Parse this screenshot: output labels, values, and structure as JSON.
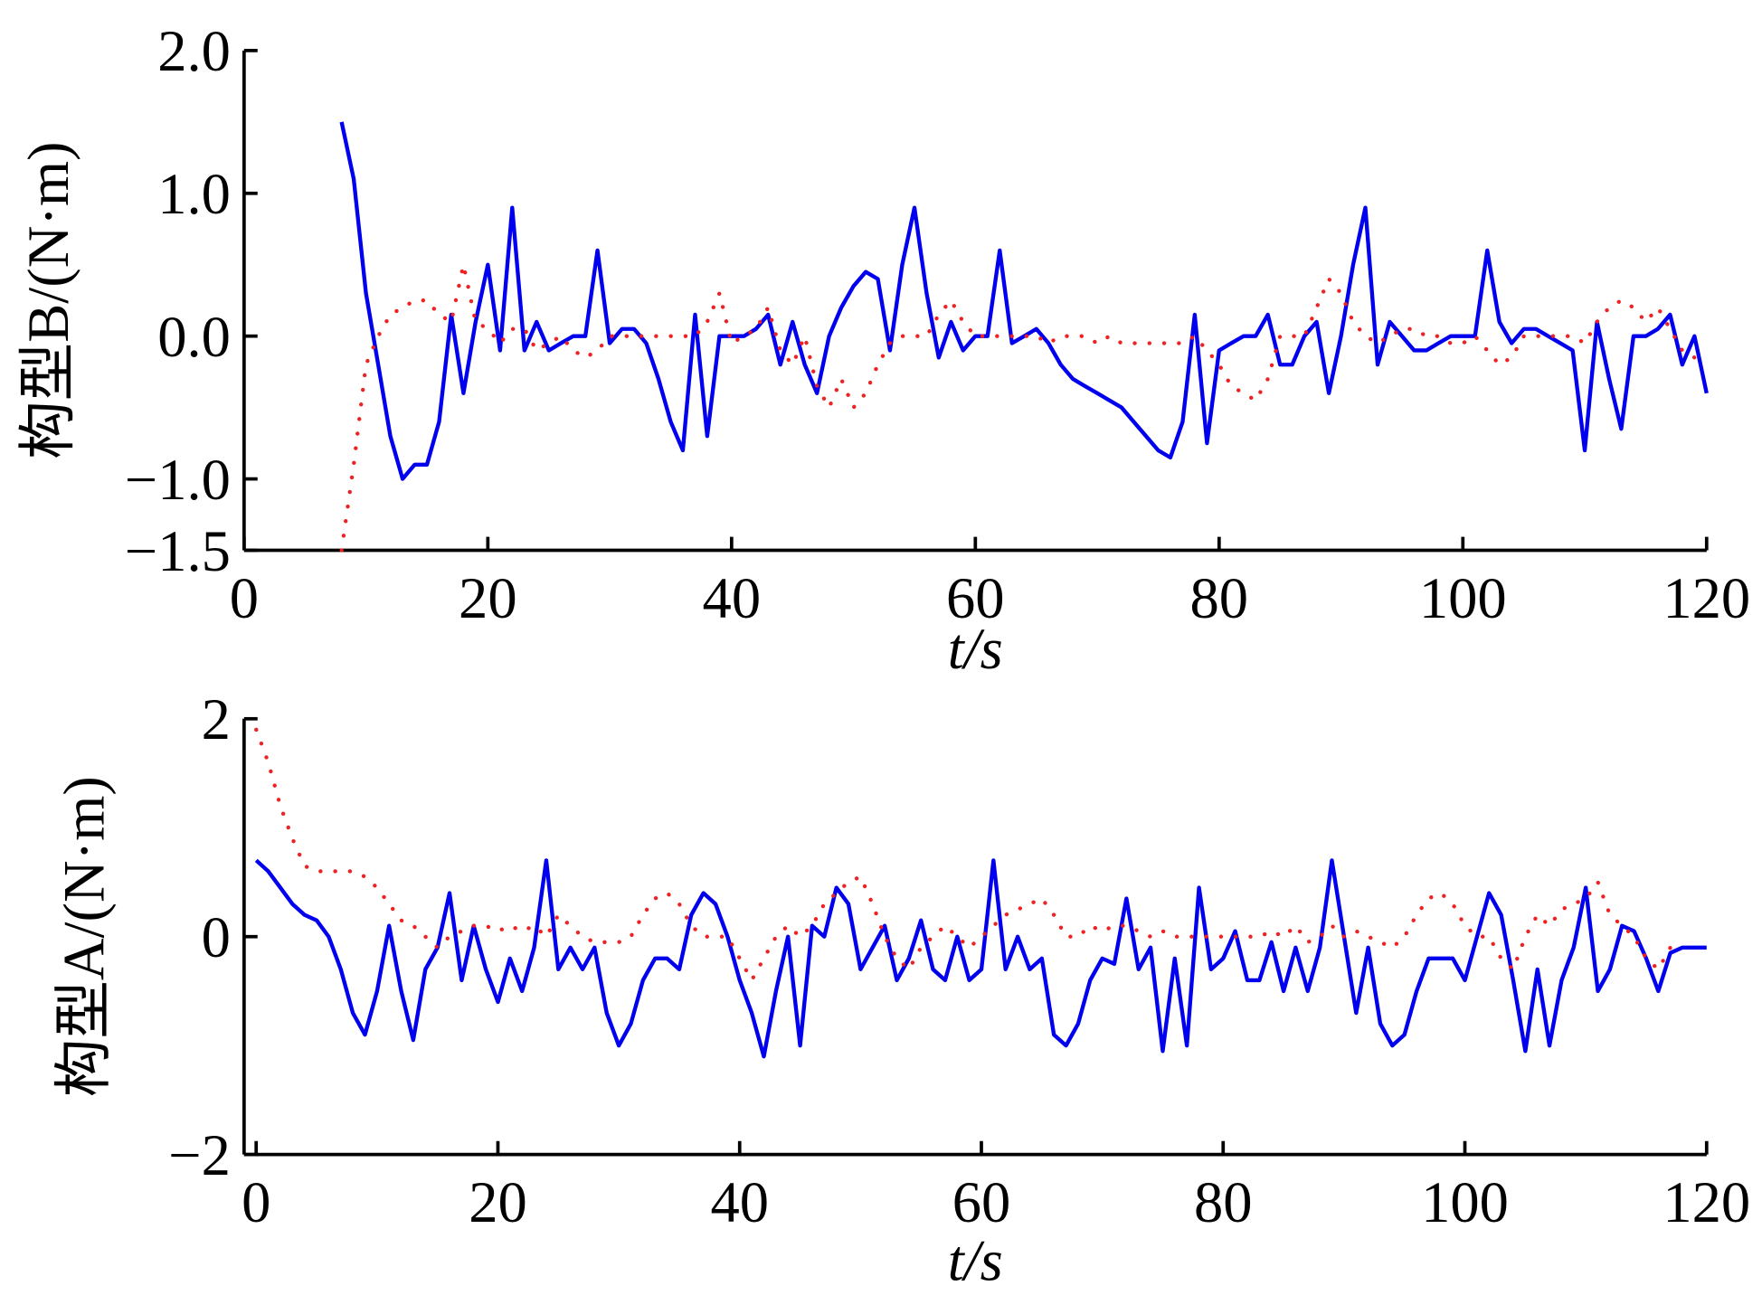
{
  "chart_data": [
    {
      "type": "line",
      "ylabel": "构型B/(N·m)",
      "xlabel": "t/s",
      "xlim": [
        0,
        120
      ],
      "xticks": [
        0,
        20,
        40,
        60,
        80,
        100,
        120
      ],
      "ylim": [
        -1.5,
        2.0
      ],
      "yticks": [
        {
          "value": 2,
          "label": "2.0"
        },
        {
          "value": 1,
          "label": "1.0"
        },
        {
          "value": 0,
          "label": "0.0"
        },
        {
          "value": -1,
          "label": "−1.0"
        },
        {
          "value": -1.5,
          "label": "−1.5"
        }
      ],
      "x": [
        8,
        9,
        10,
        11,
        12,
        13,
        14,
        15,
        16,
        17,
        18,
        19,
        20,
        21,
        22,
        23,
        24,
        25,
        26,
        27,
        28,
        29,
        30,
        31,
        32,
        33,
        34,
        35,
        36,
        37,
        38,
        39,
        40,
        41,
        42,
        43,
        44,
        45,
        46,
        47,
        48,
        49,
        50,
        51,
        52,
        53,
        54,
        55,
        56,
        57,
        58,
        59,
        60,
        61,
        62,
        63,
        64,
        65,
        66,
        67,
        68,
        69,
        70,
        71,
        72,
        73,
        74,
        75,
        76,
        77,
        78,
        79,
        80,
        81,
        82,
        83,
        84,
        85,
        86,
        87,
        88,
        89,
        90,
        91,
        92,
        93,
        94,
        95,
        96,
        97,
        98,
        99,
        100,
        101,
        102,
        103,
        104,
        105,
        106,
        107,
        108,
        109,
        110,
        111,
        112,
        113,
        114,
        115,
        116,
        117,
        118,
        119,
        120
      ],
      "series": [
        {
          "color": "#0000ee",
          "style": "solid",
          "values": [
            1.5,
            1.1,
            0.3,
            -0.2,
            -0.7,
            -1.0,
            -0.9,
            -0.9,
            -0.6,
            0.15,
            -0.4,
            0.1,
            0.5,
            -0.1,
            0.9,
            -0.1,
            0.1,
            -0.1,
            -0.05,
            0.0,
            0.0,
            0.6,
            -0.05,
            0.05,
            0.05,
            -0.05,
            -0.3,
            -0.6,
            -0.8,
            0.15,
            -0.7,
            0.0,
            0.0,
            0.0,
            0.05,
            0.15,
            -0.2,
            0.1,
            -0.2,
            -0.4,
            0.0,
            0.2,
            0.35,
            0.45,
            0.4,
            -0.1,
            0.5,
            0.9,
            0.3,
            -0.15,
            0.1,
            -0.1,
            0.0,
            0.0,
            0.6,
            -0.05,
            0.0,
            0.05,
            -0.05,
            -0.2,
            -0.3,
            -0.35,
            -0.4,
            -0.45,
            -0.5,
            -0.6,
            -0.7,
            -0.8,
            -0.85,
            -0.6,
            0.15,
            -0.75,
            -0.1,
            -0.05,
            0.0,
            0.0,
            0.15,
            -0.2,
            -0.2,
            0.0,
            0.1,
            -0.4,
            0.0,
            0.5,
            0.9,
            -0.2,
            0.1,
            0.0,
            -0.1,
            -0.1,
            -0.05,
            0.0,
            0.0,
            0.0,
            0.6,
            0.1,
            -0.05,
            0.05,
            0.05,
            0.0,
            -0.05,
            -0.1,
            -0.8,
            0.1,
            -0.3,
            -0.65,
            0.0,
            0.0,
            0.05,
            0.15,
            -0.2,
            0.0,
            -0.4
          ]
        },
        {
          "color": "#ee2222",
          "style": "dotted",
          "values": [
            -1.5,
            -0.9,
            -0.2,
            0.0,
            0.15,
            0.2,
            0.25,
            0.25,
            0.15,
            0.1,
            0.5,
            0.1,
            0.05,
            -0.05,
            0.05,
            0.05,
            -0.1,
            -0.05,
            0.0,
            -0.1,
            -0.15,
            -0.1,
            0.0,
            0.0,
            0.0,
            0.0,
            0.0,
            0.0,
            0.0,
            0.0,
            0.1,
            0.3,
            -0.05,
            0.0,
            0.05,
            0.2,
            -0.1,
            -0.2,
            0.0,
            -0.35,
            -0.5,
            -0.3,
            -0.5,
            -0.4,
            -0.2,
            -0.05,
            0.0,
            0.0,
            0.0,
            0.15,
            0.25,
            0.1,
            0.0,
            0.0,
            0.0,
            0.0,
            0.0,
            0.0,
            -0.05,
            0.0,
            0.0,
            0.0,
            -0.05,
            0.0,
            -0.05,
            -0.05,
            -0.05,
            -0.05,
            -0.05,
            -0.05,
            0.0,
            -0.1,
            -0.2,
            -0.35,
            -0.4,
            -0.45,
            -0.3,
            0.0,
            0.0,
            0.0,
            0.2,
            0.4,
            0.3,
            0.1,
            0.0,
            -0.05,
            0.0,
            0.05,
            0.05,
            0.0,
            0.0,
            -0.05,
            -0.05,
            0.0,
            -0.1,
            -0.2,
            -0.15,
            0.0,
            0.0,
            0.0,
            0.0,
            0.0,
            -0.05,
            0.1,
            0.2,
            0.25,
            0.2,
            0.1,
            0.2,
            0.05,
            -0.1,
            -0.15,
            -0.2
          ]
        }
      ]
    },
    {
      "type": "line",
      "ylabel": "构型A/(N·m)",
      "xlabel": "t/s",
      "xlim": [
        -1,
        120
      ],
      "xticks": [
        0,
        20,
        40,
        60,
        80,
        100,
        120
      ],
      "ylim": [
        -2,
        2
      ],
      "yticks": [
        {
          "value": -2,
          "label": "−2"
        },
        0,
        2
      ],
      "x": [
        0,
        1,
        2,
        3,
        4,
        5,
        6,
        7,
        8,
        9,
        10,
        11,
        12,
        13,
        14,
        15,
        16,
        17,
        18,
        19,
        20,
        21,
        22,
        23,
        24,
        25,
        26,
        27,
        28,
        29,
        30,
        31,
        32,
        33,
        34,
        35,
        36,
        37,
        38,
        39,
        40,
        41,
        42,
        43,
        44,
        45,
        46,
        47,
        48,
        49,
        50,
        51,
        52,
        53,
        54,
        55,
        56,
        57,
        58,
        59,
        60,
        61,
        62,
        63,
        64,
        65,
        66,
        67,
        68,
        69,
        70,
        71,
        72,
        73,
        74,
        75,
        76,
        77,
        78,
        79,
        80,
        81,
        82,
        83,
        84,
        85,
        86,
        87,
        88,
        89,
        90,
        91,
        92,
        93,
        94,
        95,
        96,
        97,
        98,
        99,
        100,
        101,
        102,
        103,
        104,
        105,
        106,
        107,
        108,
        109,
        110,
        111,
        112,
        113,
        114,
        115,
        116,
        117,
        118,
        119,
        120
      ],
      "series": [
        {
          "color": "#0000ee",
          "style": "solid",
          "values": [
            0.7,
            0.6,
            0.45,
            0.3,
            0.2,
            0.15,
            0.0,
            -0.3,
            -0.7,
            -0.9,
            -0.5,
            0.1,
            -0.5,
            -0.95,
            -0.3,
            -0.1,
            0.4,
            -0.4,
            0.1,
            -0.3,
            -0.6,
            -0.2,
            -0.5,
            -0.1,
            0.7,
            -0.3,
            -0.1,
            -0.3,
            -0.1,
            -0.7,
            -1.0,
            -0.8,
            -0.4,
            -0.2,
            -0.2,
            -0.3,
            0.2,
            0.4,
            0.3,
            0.0,
            -0.4,
            -0.7,
            -1.1,
            -0.5,
            0.0,
            -1.0,
            0.1,
            0.0,
            0.45,
            0.3,
            -0.3,
            -0.1,
            0.1,
            -0.4,
            -0.2,
            0.15,
            -0.3,
            -0.4,
            0.0,
            -0.4,
            -0.3,
            0.7,
            -0.3,
            0.0,
            -0.3,
            -0.2,
            -0.9,
            -1.0,
            -0.8,
            -0.4,
            -0.2,
            -0.25,
            0.35,
            -0.3,
            -0.1,
            -1.05,
            -0.2,
            -1.0,
            0.45,
            -0.3,
            -0.2,
            0.05,
            -0.4,
            -0.4,
            -0.05,
            -0.5,
            -0.1,
            -0.5,
            -0.1,
            0.7,
            0.0,
            -0.7,
            -0.1,
            -0.8,
            -1.0,
            -0.9,
            -0.5,
            -0.2,
            -0.2,
            -0.2,
            -0.4,
            0.0,
            0.4,
            0.2,
            -0.4,
            -1.05,
            -0.3,
            -1.0,
            -0.4,
            -0.1,
            0.45,
            -0.5,
            -0.3,
            0.1,
            0.05,
            -0.2,
            -0.5,
            -0.15,
            -0.1,
            -0.1,
            -0.1
          ]
        },
        {
          "color": "#ee2222",
          "style": "dotted",
          "values": [
            1.9,
            1.6,
            1.2,
            0.9,
            0.65,
            0.6,
            0.6,
            0.6,
            0.6,
            0.55,
            0.45,
            0.3,
            0.15,
            0.1,
            0.0,
            -0.1,
            0.0,
            0.05,
            0.1,
            0.1,
            0.05,
            0.1,
            0.05,
            0.1,
            0.0,
            0.2,
            0.1,
            0.0,
            -0.05,
            -0.05,
            -0.05,
            0.0,
            0.2,
            0.35,
            0.4,
            0.3,
            0.1,
            0.0,
            0.0,
            0.0,
            -0.2,
            -0.4,
            -0.2,
            0.0,
            0.1,
            0.0,
            0.1,
            0.3,
            0.4,
            0.5,
            0.55,
            0.3,
            0.0,
            -0.2,
            -0.3,
            -0.1,
            0.0,
            0.1,
            0.0,
            -0.1,
            0.0,
            0.1,
            0.2,
            0.25,
            0.3,
            0.35,
            0.2,
            0.0,
            0.0,
            0.1,
            0.05,
            0.1,
            0.1,
            0.05,
            0.0,
            0.05,
            0.0,
            0.0,
            0.0,
            0.0,
            0.0,
            0.0,
            0.0,
            0.0,
            0.05,
            0.0,
            0.1,
            -0.05,
            0.0,
            0.1,
            0.0,
            0.05,
            0.0,
            -0.05,
            -0.1,
            0.0,
            0.2,
            0.35,
            0.4,
            0.3,
            0.1,
            0.0,
            0.0,
            -0.2,
            -0.3,
            0.0,
            0.2,
            0.1,
            0.25,
            0.3,
            0.35,
            0.5,
            0.2,
            0.1,
            0.0,
            -0.2,
            -0.3,
            -0.1,
            null,
            null,
            null
          ]
        }
      ]
    }
  ]
}
